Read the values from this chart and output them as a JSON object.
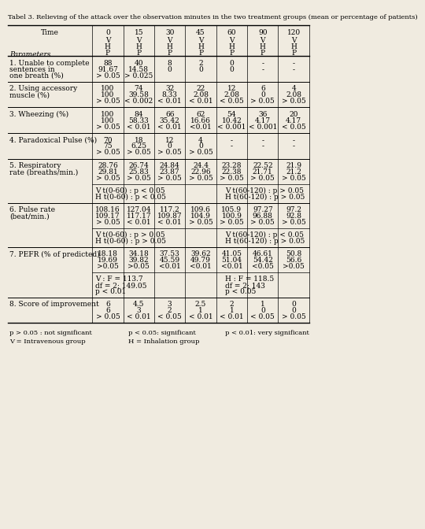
{
  "title": "Tabel 3. Relieving of the attack over the observation minutes in the two treatment groups (mean or percentage of patients)",
  "col_headers": {
    "time_label": "Time",
    "param_label": "Parameters",
    "times": [
      "0",
      "15",
      "30",
      "45",
      "60",
      "90",
      "120"
    ],
    "sub_rows": [
      "V",
      "H",
      "P"
    ]
  },
  "rows": [
    {
      "label": "1. Unable to complete\n   sentences in\n   one breath (%)",
      "data": [
        [
          "88",
          "40",
          "8",
          "2",
          "0",
          "-",
          "-"
        ],
        [
          "91.67",
          "14.58",
          "0",
          "0",
          "0",
          "-",
          "-"
        ],
        [
          "> 0.05",
          "> 0.025",
          "",
          "",
          "",
          "",
          ""
        ]
      ],
      "note": null
    },
    {
      "label": "2. Using accessory\n   muscle (%)",
      "data": [
        [
          "100",
          "74",
          "32",
          "22",
          "12",
          "6",
          "4"
        ],
        [
          "100",
          "39.58",
          "8.33",
          "2.08",
          "2.08",
          "0",
          "2.08"
        ],
        [
          "> 0.05",
          "< 0.002",
          "< 0.01",
          "< 0.01",
          "< 0.05",
          "> 0.05",
          "> 0.05"
        ]
      ],
      "note": null
    },
    {
      "label": "3. Wheezing (%)",
      "data": [
        [
          "100",
          "84",
          "66",
          "62",
          "54",
          "36",
          "20"
        ],
        [
          "100",
          "58.33",
          "35.42",
          "16.66",
          "10.42",
          "4.17",
          "4.17"
        ],
        [
          "> 0.05",
          "< 0.01",
          "< 0.01",
          "<0.01",
          "< 0.001",
          "< 0.001",
          "< 0.05"
        ]
      ],
      "note": null
    },
    {
      "label": "4. Paradoxical Pulse (%)",
      "data": [
        [
          "70",
          "18",
          "12",
          "4",
          "-",
          "-",
          "-"
        ],
        [
          "75",
          "6.25",
          "0",
          "0",
          "-",
          "-",
          "-"
        ],
        [
          "> 0.05",
          "> 0.05",
          "> 0.05",
          "> 0.05",
          "",
          "",
          ""
        ]
      ],
      "note": null
    },
    {
      "label": "5. Respiratory\n   rate (breaths/min.)",
      "data": [
        [
          "28.76",
          "26.74",
          "24.84",
          "24.4",
          "23.28",
          "22.52",
          "21.9"
        ],
        [
          "29.81",
          "25.83",
          "23.87",
          "22.96",
          "22.38",
          "21.71",
          "21.2"
        ],
        [
          "> 0.05",
          "> 0.05",
          "> 0.05",
          "> 0.05",
          "> 0.05",
          "> 0.05",
          "> 0.05"
        ]
      ],
      "note_left": "V t(0-60) : p < 0.05\nH t(0-60) : p < 0.05",
      "note_right": "V t(60-120) : p > 0.05\nH t(60-120) : p > 0.05"
    },
    {
      "label": "6. Pulse rate\n   (beat/min.)",
      "data": [
        [
          "108.16",
          "127.04",
          "117.2",
          "109.6",
          "105.9",
          "97.27",
          "97.2"
        ],
        [
          "109.17",
          "117.17",
          "109.87",
          "104.9",
          "100.9",
          "96.88",
          "92.8"
        ],
        [
          "> 0.05",
          "< 0.01",
          "< 0.01",
          "> 0.05",
          "> 0.05",
          "> 0.05",
          "> 0.05"
        ]
      ],
      "note_left": "V t(0-60) : p > 0.05\nH t(0-60) : p > 0.05",
      "note_right": "V t(60-120) : p < 0.05\nH t(60-120) : p > 0.05"
    },
    {
      "label": "7. PEFR (% of predicted)",
      "data": [
        [
          "18.18",
          "34.18",
          "37.53",
          "39.62",
          "41.05",
          "46.61",
          "50.8"
        ],
        [
          "19.69",
          "39.82",
          "45.59",
          "49.79",
          "51.04",
          "54.42",
          "56.6"
        ],
        [
          ">0.05",
          ">0.05",
          "<0.01",
          "<0.01",
          "<0.01",
          "<0.05",
          ">0.05"
        ]
      ],
      "note_left": "V : F = 113.7\n  df = 2; 149.05\n  p < 0.01",
      "note_right": "H : F = 118.5\n  df = 2; 143\n  p < 0.05"
    },
    {
      "label": "8. Score of improvement",
      "data": [
        [
          "6",
          "4.5",
          "3",
          "2.5",
          "2",
          "1",
          "0"
        ],
        [
          "6",
          "3",
          "2",
          "1",
          "1",
          "0",
          "0"
        ],
        [
          "> 0.05",
          "< 0.01",
          "< 0.05",
          "< 0.01",
          "< 0.01",
          "< 0.05",
          "> 0.05"
        ]
      ],
      "note_left": null,
      "note_right": null
    }
  ],
  "footnotes": [
    "p > 0.05 : not significant",
    "V = Intravenous group",
    "p < 0.05: significant",
    "H = Inhalation group",
    "p < 0.01: very significant"
  ],
  "bg_color": "#f0ebe0",
  "text_color": "#000000",
  "font_size": 6.5
}
